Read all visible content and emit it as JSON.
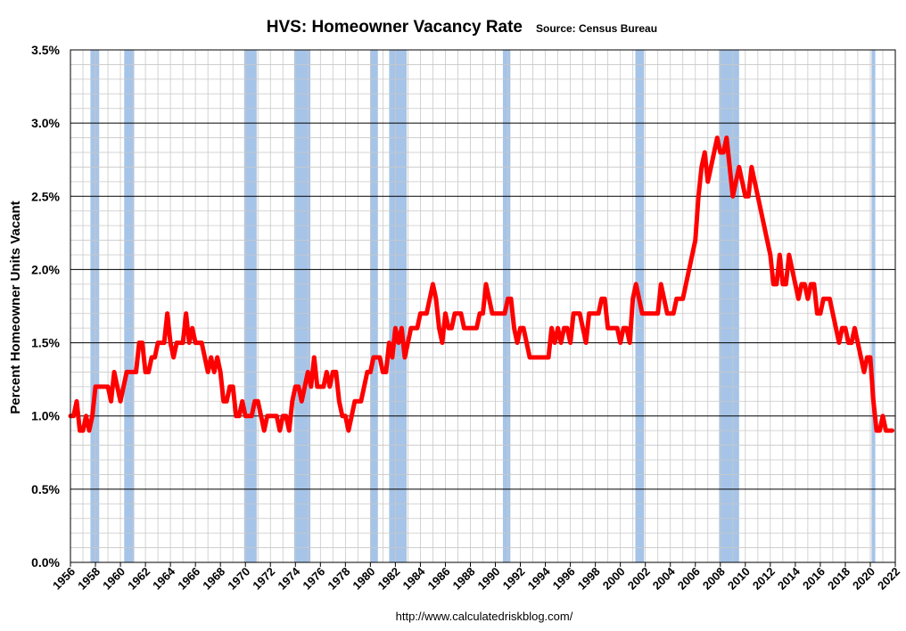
{
  "chart_data": {
    "type": "line",
    "title": "HVS: Homeowner Vacancy Rate",
    "subtitle": "Source: Census Bureau",
    "ylabel": "Percent Homeowner Units Vacant",
    "xlabel": "",
    "footer": "http://www.calculatedriskblog.com/",
    "xlim": [
      1956,
      2022
    ],
    "ylim": [
      0,
      3.5
    ],
    "x_ticks": [
      "1956",
      "1958",
      "1960",
      "1962",
      "1964",
      "1966",
      "1968",
      "1970",
      "1972",
      "1974",
      "1976",
      "1978",
      "1980",
      "1982",
      "1984",
      "1986",
      "1988",
      "1990",
      "1992",
      "1994",
      "1996",
      "1998",
      "2000",
      "2002",
      "2004",
      "2006",
      "2008",
      "2010",
      "2012",
      "2014",
      "2016",
      "2018",
      "2020",
      "2022"
    ],
    "y_ticks": [
      "0.0%",
      "0.5%",
      "1.0%",
      "1.5%",
      "2.0%",
      "2.5%",
      "3.0%",
      "3.5%"
    ],
    "grid": true,
    "line_color": "#ff0000",
    "recession_color": "#a6c4e8",
    "recessions": [
      [
        1957.6,
        1958.3
      ],
      [
        1960.3,
        1961.1
      ],
      [
        1969.9,
        1970.9
      ],
      [
        1973.9,
        1975.2
      ],
      [
        1980.0,
        1980.6
      ],
      [
        1981.5,
        1982.9
      ],
      [
        1990.6,
        1991.2
      ],
      [
        2001.2,
        2001.9
      ],
      [
        2007.9,
        2009.5
      ],
      [
        2020.1,
        2020.4
      ]
    ],
    "series": [
      {
        "x": [
          1956.0,
          1956.25,
          1956.5,
          1956.75,
          1957.0,
          1957.25,
          1957.5,
          1957.75,
          1958.0,
          1958.25,
          1958.5,
          1958.75,
          1959.0,
          1959.25,
          1959.5,
          1959.75,
          1960.0,
          1960.25,
          1960.5,
          1960.75,
          1961.0,
          1961.25,
          1961.5,
          1961.75,
          1962.0,
          1962.25,
          1962.5,
          1962.75,
          1963.0,
          1963.25,
          1963.5,
          1963.75,
          1964.0,
          1964.25,
          1964.5,
          1964.75,
          1965.0,
          1965.25,
          1965.5,
          1965.75,
          1966.0,
          1966.25,
          1966.5,
          1966.75,
          1967.0,
          1967.25,
          1967.5,
          1967.75,
          1968.0,
          1968.25,
          1968.5,
          1968.75,
          1969.0,
          1969.25,
          1969.5,
          1969.75,
          1970.0,
          1970.25,
          1970.5,
          1970.75,
          1971.0,
          1971.25,
          1971.5,
          1971.75,
          1972.0,
          1972.25,
          1972.5,
          1972.75,
          1973.0,
          1973.25,
          1973.5,
          1973.75,
          1974.0,
          1974.25,
          1974.5,
          1974.75,
          1975.0,
          1975.25,
          1975.5,
          1975.75,
          1976.0,
          1976.25,
          1976.5,
          1976.75,
          1977.0,
          1977.25,
          1977.5,
          1977.75,
          1978.0,
          1978.25,
          1978.5,
          1978.75,
          1979.0,
          1979.25,
          1979.5,
          1979.75,
          1980.0,
          1980.25,
          1980.5,
          1980.75,
          1981.0,
          1981.25,
          1981.5,
          1981.75,
          1982.0,
          1982.25,
          1982.5,
          1982.75,
          1983.0,
          1983.25,
          1983.5,
          1983.75,
          1984.0,
          1984.25,
          1984.5,
          1984.75,
          1985.0,
          1985.25,
          1985.5,
          1985.75,
          1986.0,
          1986.25,
          1986.5,
          1986.75,
          1987.0,
          1987.25,
          1987.5,
          1987.75,
          1988.0,
          1988.25,
          1988.5,
          1988.75,
          1989.0,
          1989.25,
          1989.5,
          1989.75,
          1990.0,
          1990.25,
          1990.5,
          1990.75,
          1991.0,
          1991.25,
          1991.5,
          1991.75,
          1992.0,
          1992.25,
          1992.5,
          1992.75,
          1993.0,
          1993.25,
          1993.5,
          1993.75,
          1994.0,
          1994.25,
          1994.5,
          1994.75,
          1995.0,
          1995.25,
          1995.5,
          1995.75,
          1996.0,
          1996.25,
          1996.5,
          1996.75,
          1997.0,
          1997.25,
          1997.5,
          1997.75,
          1998.0,
          1998.25,
          1998.5,
          1998.75,
          1999.0,
          1999.25,
          1999.5,
          1999.75,
          2000.0,
          2000.25,
          2000.5,
          2000.75,
          2001.0,
          2001.25,
          2001.5,
          2001.75,
          2002.0,
          2002.25,
          2002.5,
          2002.75,
          2003.0,
          2003.25,
          2003.5,
          2003.75,
          2004.0,
          2004.25,
          2004.5,
          2004.75,
          2005.0,
          2005.25,
          2005.5,
          2005.75,
          2006.0,
          2006.25,
          2006.5,
          2006.75,
          2007.0,
          2007.25,
          2007.5,
          2007.75,
          2008.0,
          2008.25,
          2008.5,
          2008.75,
          2009.0,
          2009.25,
          2009.5,
          2009.75,
          2010.0,
          2010.25,
          2010.5,
          2010.75,
          2011.0,
          2011.25,
          2011.5,
          2011.75,
          2012.0,
          2012.25,
          2012.5,
          2012.75,
          2013.0,
          2013.25,
          2013.5,
          2013.75,
          2014.0,
          2014.25,
          2014.5,
          2014.75,
          2015.0,
          2015.25,
          2015.5,
          2015.75,
          2016.0,
          2016.25,
          2016.5,
          2016.75,
          2017.0,
          2017.25,
          2017.5,
          2017.75,
          2018.0,
          2018.25,
          2018.5,
          2018.75,
          2019.0,
          2019.25,
          2019.5,
          2019.75,
          2020.0,
          2020.25,
          2020.5,
          2020.75,
          2021.0,
          2021.25,
          2021.5,
          2021.75
        ],
        "y": [
          1.0,
          1.0,
          1.1,
          0.9,
          0.9,
          1.0,
          0.9,
          1.0,
          1.2,
          1.2,
          1.2,
          1.2,
          1.2,
          1.1,
          1.3,
          1.2,
          1.1,
          1.2,
          1.3,
          1.3,
          1.3,
          1.3,
          1.5,
          1.5,
          1.3,
          1.3,
          1.4,
          1.4,
          1.5,
          1.5,
          1.5,
          1.7,
          1.5,
          1.4,
          1.5,
          1.5,
          1.5,
          1.7,
          1.5,
          1.6,
          1.5,
          1.5,
          1.5,
          1.4,
          1.3,
          1.4,
          1.3,
          1.4,
          1.3,
          1.1,
          1.1,
          1.2,
          1.2,
          1.0,
          1.0,
          1.1,
          1.0,
          1.0,
          1.0,
          1.1,
          1.1,
          1.0,
          0.9,
          1.0,
          1.0,
          1.0,
          1.0,
          0.9,
          1.0,
          1.0,
          0.9,
          1.1,
          1.2,
          1.2,
          1.1,
          1.2,
          1.3,
          1.2,
          1.4,
          1.2,
          1.2,
          1.2,
          1.3,
          1.2,
          1.3,
          1.3,
          1.1,
          1.0,
          1.0,
          0.9,
          1.0,
          1.1,
          1.1,
          1.1,
          1.2,
          1.3,
          1.3,
          1.4,
          1.4,
          1.4,
          1.3,
          1.3,
          1.5,
          1.4,
          1.6,
          1.5,
          1.6,
          1.4,
          1.5,
          1.6,
          1.6,
          1.6,
          1.7,
          1.7,
          1.7,
          1.8,
          1.9,
          1.8,
          1.6,
          1.5,
          1.7,
          1.6,
          1.6,
          1.7,
          1.7,
          1.7,
          1.6,
          1.6,
          1.6,
          1.6,
          1.6,
          1.7,
          1.7,
          1.9,
          1.8,
          1.7,
          1.7,
          1.7,
          1.7,
          1.7,
          1.8,
          1.8,
          1.6,
          1.5,
          1.6,
          1.6,
          1.5,
          1.4,
          1.4,
          1.4,
          1.4,
          1.4,
          1.4,
          1.4,
          1.6,
          1.5,
          1.6,
          1.5,
          1.6,
          1.6,
          1.5,
          1.7,
          1.7,
          1.7,
          1.6,
          1.5,
          1.7,
          1.7,
          1.7,
          1.7,
          1.8,
          1.8,
          1.6,
          1.6,
          1.6,
          1.6,
          1.5,
          1.6,
          1.6,
          1.5,
          1.8,
          1.9,
          1.8,
          1.7,
          1.7,
          1.7,
          1.7,
          1.7,
          1.7,
          1.9,
          1.8,
          1.7,
          1.7,
          1.7,
          1.8,
          1.8,
          1.8,
          1.9,
          2.0,
          2.1,
          2.2,
          2.5,
          2.7,
          2.8,
          2.6,
          2.7,
          2.8,
          2.9,
          2.8,
          2.8,
          2.9,
          2.7,
          2.5,
          2.6,
          2.7,
          2.6,
          2.5,
          2.5,
          2.7,
          2.6,
          2.5,
          2.4,
          2.3,
          2.2,
          2.1,
          1.9,
          1.9,
          2.1,
          1.9,
          1.9,
          2.1,
          2.0,
          1.9,
          1.8,
          1.9,
          1.9,
          1.8,
          1.9,
          1.9,
          1.7,
          1.7,
          1.8,
          1.8,
          1.8,
          1.7,
          1.6,
          1.5,
          1.6,
          1.6,
          1.5,
          1.5,
          1.6,
          1.5,
          1.4,
          1.3,
          1.4,
          1.4,
          1.1,
          0.9,
          0.9,
          1.0,
          0.9,
          0.9,
          0.9
        ]
      }
    ]
  }
}
